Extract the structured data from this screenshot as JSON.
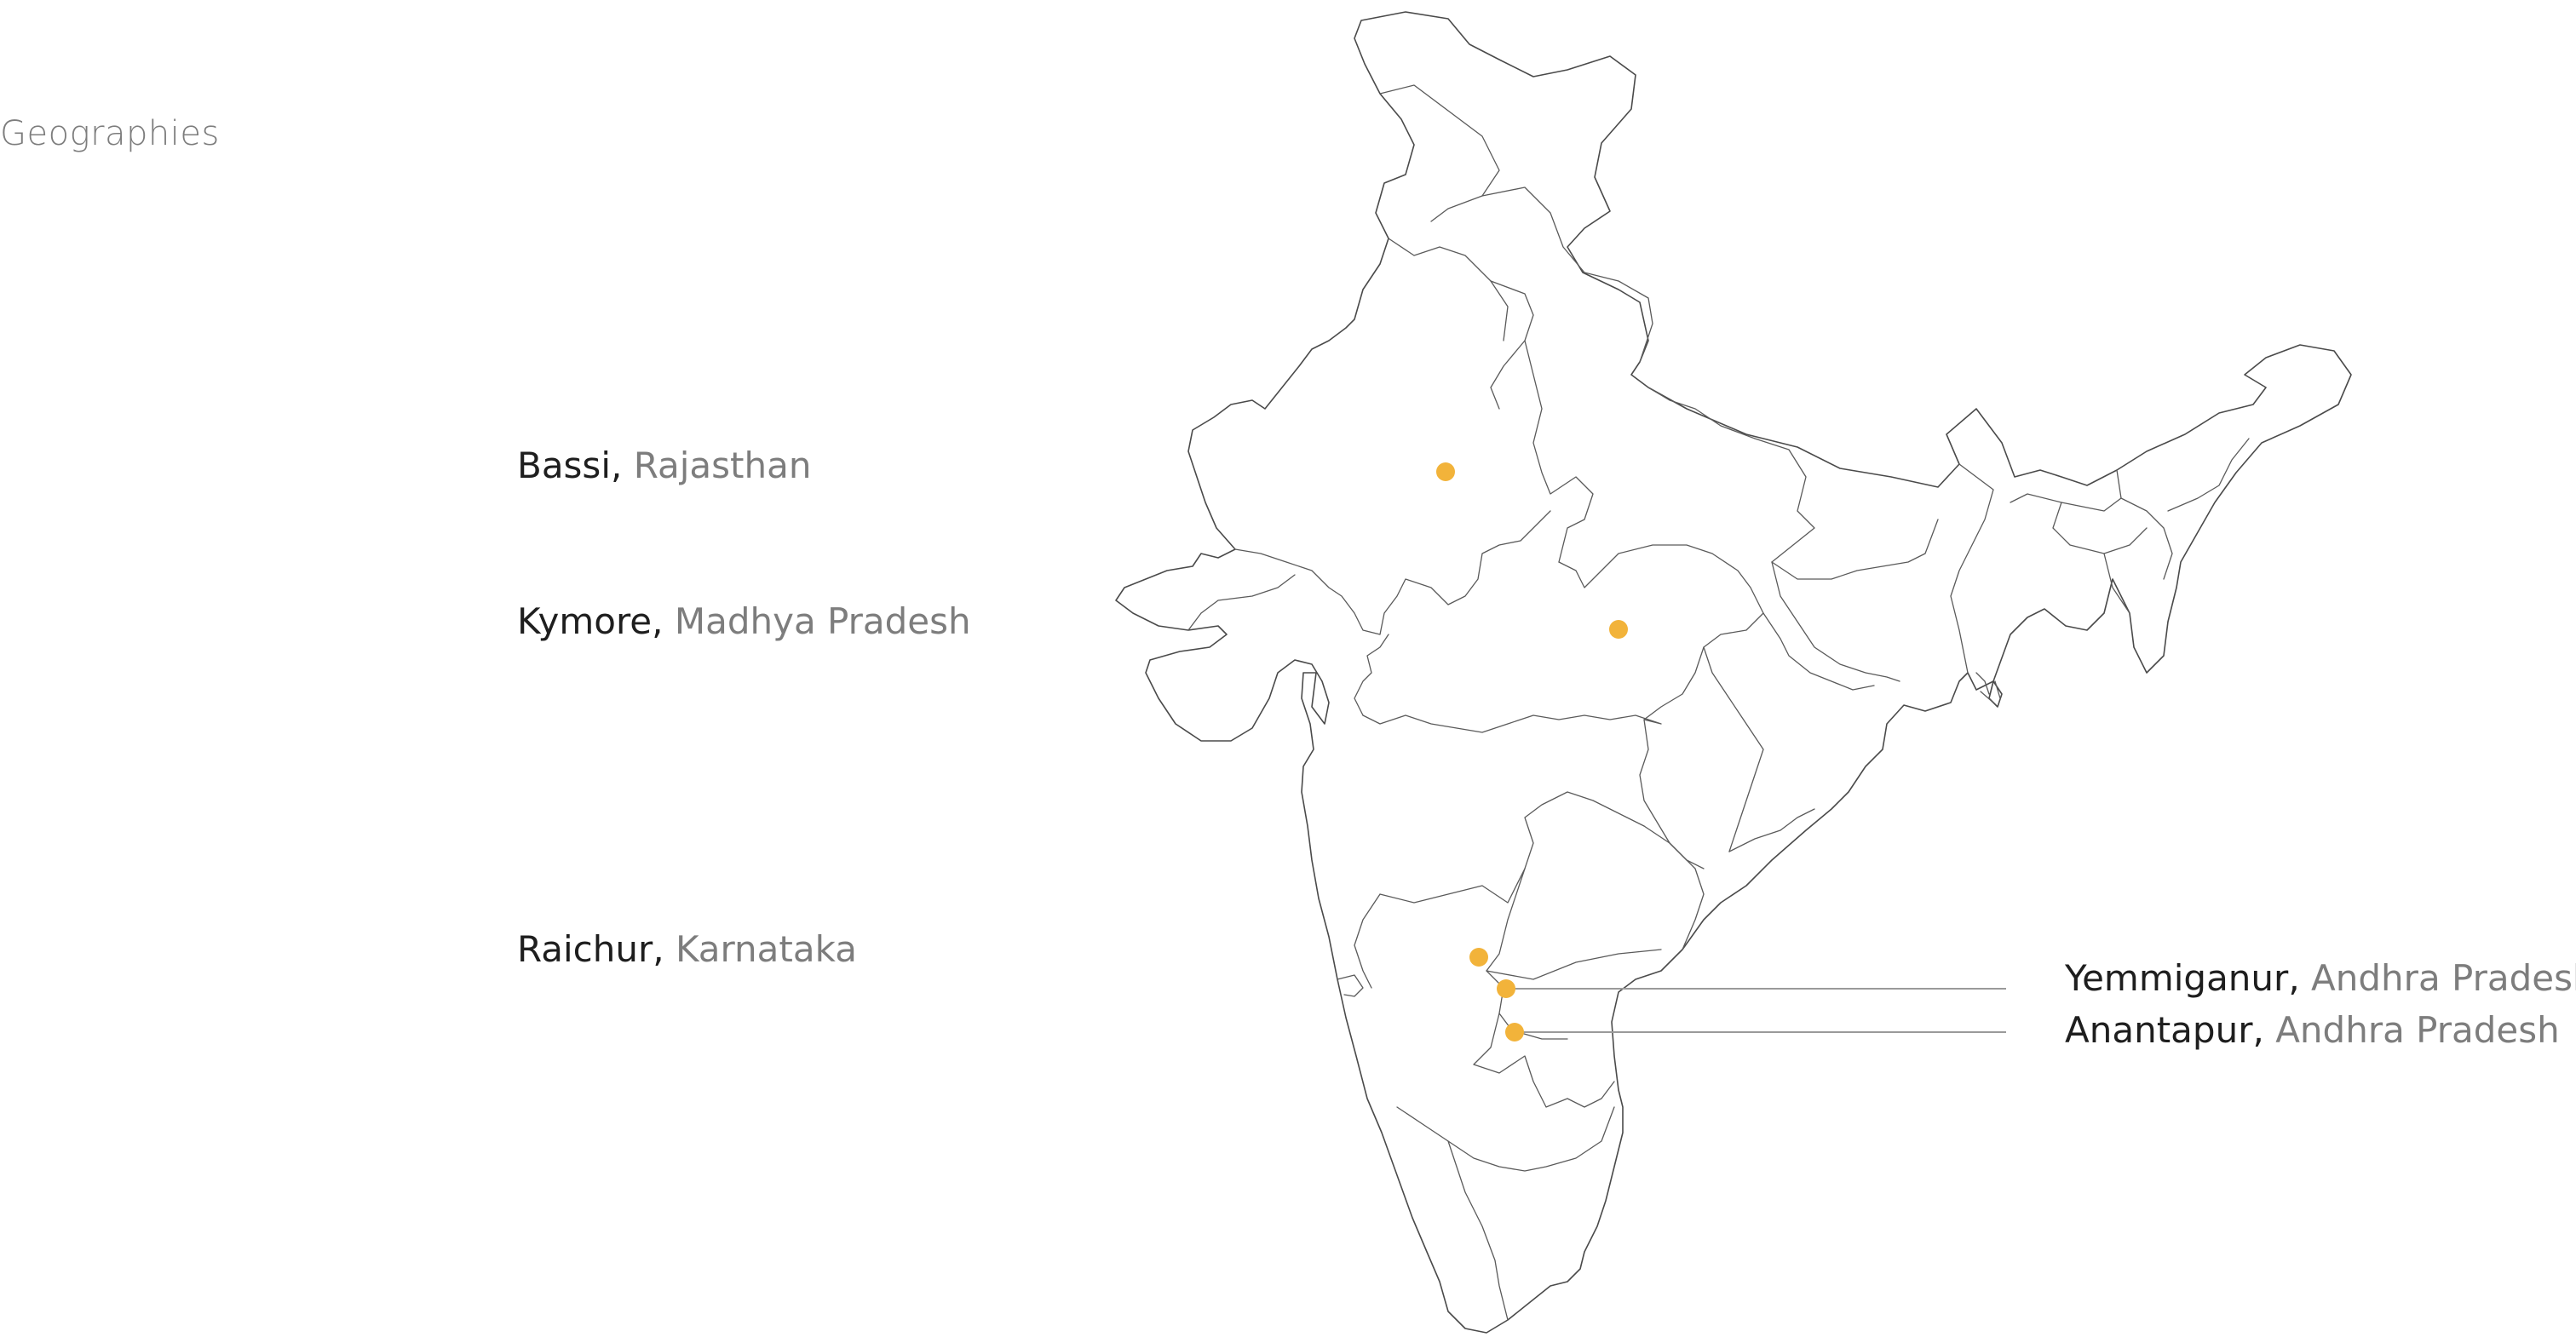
{
  "section_title": "Geographies",
  "colors": {
    "marker": "#F2B33A",
    "map_stroke": "#4a4a4a",
    "leader_line": "#9a9a9a",
    "town_text": "#1e1e1e",
    "state_text": "#7d7d7d"
  },
  "locations": [
    {
      "town": "Bassi",
      "separator": ",",
      "state": "Rajasthan"
    },
    {
      "town": "Kymore",
      "separator": ",",
      "state": "Madhya Pradesh"
    },
    {
      "town": "Raichur",
      "separator": ",",
      "state": "Karnataka"
    },
    {
      "town": "Yemmiganur",
      "separator": ",",
      "state": "Andhra Pradesh"
    },
    {
      "town": "Anantapur",
      "separator": ",",
      "state": "Andhra Pradesh"
    }
  ]
}
